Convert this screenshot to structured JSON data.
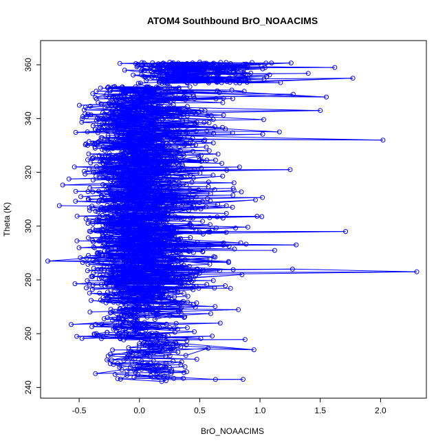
{
  "chart_data": {
    "type": "scatter",
    "title": "ATOM4 Southbound BrO_NOAACIMS",
    "xlabel": "BrO_NOAACIMS",
    "ylabel": "Theta (K)",
    "xlim": [
      -0.82,
      2.38
    ],
    "ylim": [
      236,
      369
    ],
    "x_ticks": [
      -0.5,
      0.0,
      0.5,
      1.0,
      1.5,
      2.0
    ],
    "x_tick_labels": [
      "-0.5",
      "0.0",
      "0.5",
      "1.0",
      "1.5",
      "2.0"
    ],
    "y_ticks": [
      240,
      260,
      280,
      300,
      320,
      340,
      360
    ],
    "y_tick_labels": [
      "240",
      "260",
      "280",
      "300",
      "320",
      "340",
      "360"
    ],
    "style": "points connected by lines (type='o')",
    "series_color": "#0000ff",
    "notable_points": [
      {
        "x": 2.3,
        "y": 283
      },
      {
        "x": 2.02,
        "y": 332
      },
      {
        "x": 1.77,
        "y": 355
      },
      {
        "x": 1.71,
        "y": 298
      },
      {
        "x": 1.62,
        "y": 359
      },
      {
        "x": 1.55,
        "y": 348
      },
      {
        "x": 1.5,
        "y": 343
      },
      {
        "x": 1.25,
        "y": 321
      },
      {
        "x": 1.3,
        "y": 293
      },
      {
        "x": 1.27,
        "y": 284
      },
      {
        "x": 0.95,
        "y": 254
      },
      {
        "x": 0.86,
        "y": 243
      },
      {
        "x": -0.76,
        "y": 287
      },
      {
        "x": -0.52,
        "y": 259
      }
    ],
    "bands": [
      {
        "y": [
          242,
          250
        ],
        "x_center": 0.05,
        "x_spread": 0.45,
        "n": 60
      },
      {
        "y": [
          250,
          258
        ],
        "x_center": 0.1,
        "x_spread": 0.5,
        "n": 70
      },
      {
        "y": [
          258,
          268
        ],
        "x_center": -0.05,
        "x_spread": 0.5,
        "n": 110
      },
      {
        "y": [
          268,
          278
        ],
        "x_center": 0.0,
        "x_spread": 0.55,
        "n": 200
      },
      {
        "y": [
          278,
          292
        ],
        "x_center": 0.0,
        "x_spread": 0.6,
        "n": 420
      },
      {
        "y": [
          292,
          330
        ],
        "x_center": 0.0,
        "x_spread": 0.6,
        "n": 1100
      },
      {
        "y": [
          330,
          352
        ],
        "x_center": 0.0,
        "x_spread": 0.6,
        "n": 520
      },
      {
        "y": [
          353,
          361
        ],
        "x_center": 0.45,
        "x_spread": 0.75,
        "n": 260
      }
    ]
  }
}
